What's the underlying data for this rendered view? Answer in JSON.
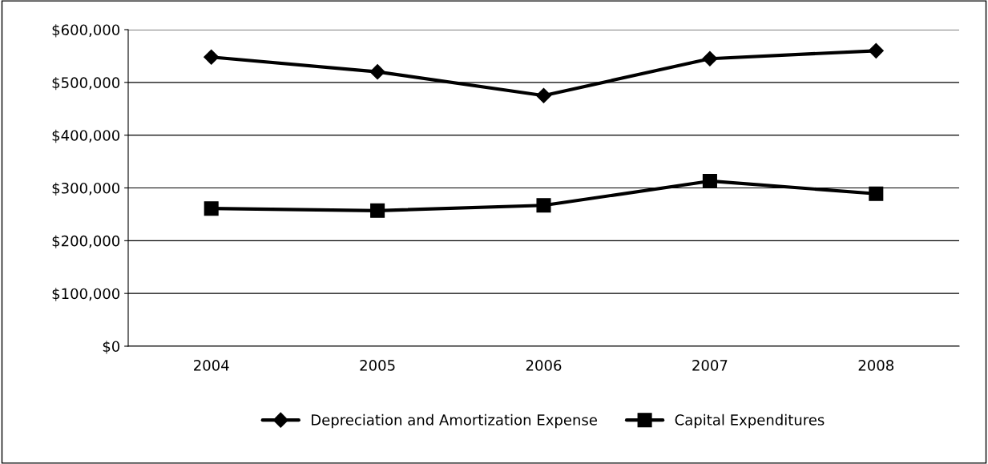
{
  "chart_data": {
    "type": "line",
    "categories": [
      "2004",
      "2005",
      "2006",
      "2007",
      "2008"
    ],
    "series": [
      {
        "name": "Depreciation and Amortization Expense",
        "color": "#000000",
        "marker": "diamond",
        "values": [
          548000,
          520000,
          475000,
          545000,
          560000
        ]
      },
      {
        "name": "Capital Expenditures",
        "color": "#000000",
        "marker": "square",
        "values": [
          261000,
          257000,
          267000,
          313000,
          289000
        ]
      }
    ],
    "ylim": [
      0,
      600000
    ],
    "yticks": [
      {
        "value": 0,
        "label": "$0"
      },
      {
        "value": 100000,
        "label": "$100,000"
      },
      {
        "value": 200000,
        "label": "$200,000"
      },
      {
        "value": 300000,
        "label": "$300,000"
      },
      {
        "value": 400000,
        "label": "$400,000"
      },
      {
        "value": 500000,
        "label": "$500,000"
      },
      {
        "value": 600000,
        "label": "$600,000"
      }
    ],
    "grid": "y",
    "legend": "bottom",
    "line_style": "solid"
  }
}
